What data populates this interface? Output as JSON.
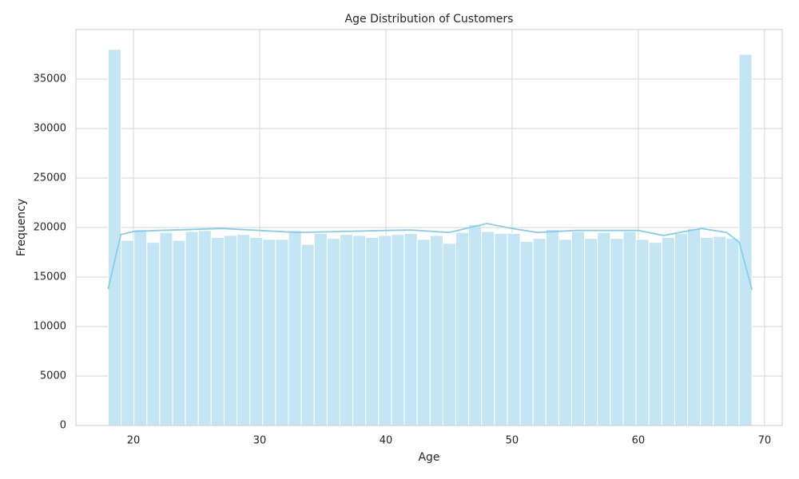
{
  "chart_data": {
    "type": "histogram",
    "title": "Age Distribution of Customers",
    "xlabel": "Age",
    "ylabel": "Frequency",
    "bins": [
      18,
      19.02,
      20.04,
      21.06,
      22.08,
      23.1,
      24.12,
      25.14,
      26.16,
      27.18,
      28.2,
      29.22,
      30.24,
      31.26,
      32.28,
      33.3,
      34.32,
      35.34,
      36.36,
      37.38,
      38.4,
      39.42,
      40.44,
      41.46,
      42.48,
      43.5,
      44.52,
      45.54,
      46.56,
      47.58,
      48.6,
      49.62,
      50.64,
      51.66,
      52.68,
      53.7,
      54.72,
      55.74,
      56.76,
      57.78,
      58.8,
      59.82,
      60.84,
      61.86,
      62.88,
      63.9,
      64.92,
      65.94,
      66.96,
      67.98,
      69
    ],
    "values": [
      38000,
      18700,
      19800,
      18500,
      19500,
      18700,
      19600,
      19700,
      19000,
      19200,
      19300,
      19000,
      18800,
      18800,
      19700,
      18300,
      19400,
      18900,
      19300,
      19200,
      19000,
      19200,
      19300,
      19400,
      18800,
      19200,
      18400,
      19500,
      20300,
      19600,
      19400,
      19400,
      18600,
      18900,
      19800,
      18800,
      19600,
      18900,
      19500,
      18900,
      19600,
      18800,
      18500,
      19000,
      19400,
      19900,
      19000,
      19100,
      18900,
      37500
    ],
    "color": "#c4e6f4",
    "kde": {
      "color": "#87ceeb",
      "x": [
        18,
        19,
        20,
        22,
        27,
        33,
        40,
        42,
        45,
        48,
        50,
        52,
        55,
        60,
        62,
        65,
        67,
        68,
        69
      ],
      "y": [
        13800,
        19300,
        19600,
        19700,
        19900,
        19500,
        19700,
        19750,
        19500,
        20400,
        19900,
        19500,
        19700,
        19700,
        19200,
        19900,
        19500,
        18500,
        13700
      ]
    },
    "xlim": [
      15.44,
      71.4
    ],
    "xticks": [
      20,
      30,
      40,
      50,
      60,
      70
    ],
    "ylim": [
      0,
      40000
    ],
    "yticks": [
      0,
      5000,
      10000,
      15000,
      20000,
      25000,
      30000,
      35000
    ],
    "grid": true
  }
}
